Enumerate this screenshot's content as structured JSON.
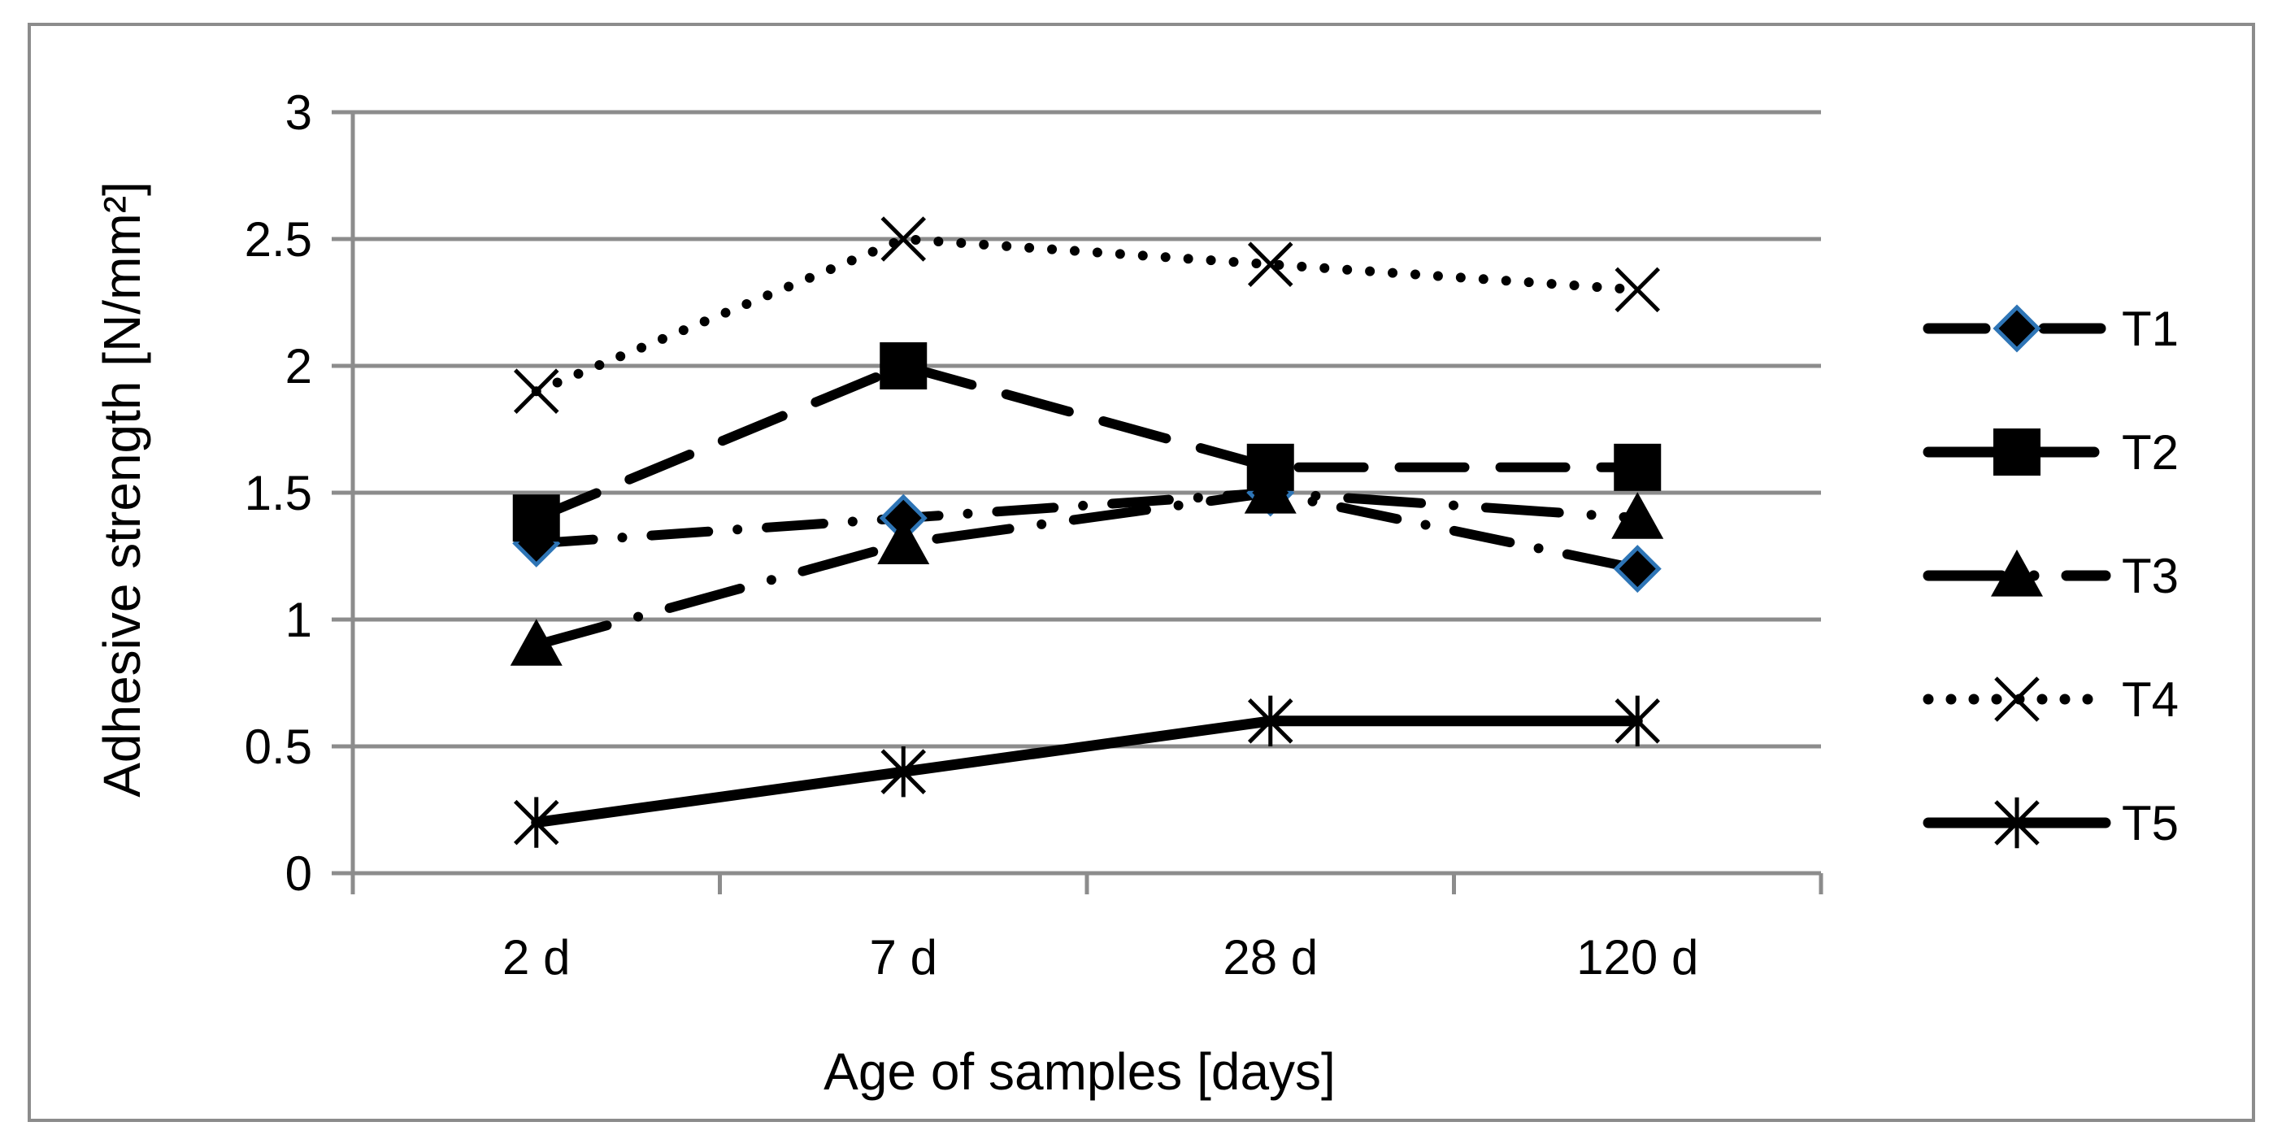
{
  "chart_data": {
    "type": "line",
    "title": "",
    "xlabel": "Age of samples [days]",
    "ylabel": "Adhesive strength [N/mm²]",
    "categories": [
      "2 d",
      "7 d",
      "28 d",
      "120 d"
    ],
    "ylim": [
      0,
      3
    ],
    "yticks": [
      0,
      0.5,
      1,
      1.5,
      2,
      2.5,
      3
    ],
    "ytick_labels": [
      "0",
      "0.5",
      "1",
      "1.5",
      "2",
      "2.5",
      "3"
    ],
    "grid": true,
    "legend_position": "right",
    "series": [
      {
        "name": "T1",
        "values": [
          1.3,
          1.4,
          1.5,
          1.2
        ],
        "dash": "dash-dot",
        "marker": "diamond"
      },
      {
        "name": "T2",
        "values": [
          1.4,
          2.0,
          1.6,
          1.6
        ],
        "dash": "long-dash",
        "marker": "square"
      },
      {
        "name": "T3",
        "values": [
          0.9,
          1.3,
          1.5,
          1.4
        ],
        "dash": "long-dash-dot",
        "marker": "triangle"
      },
      {
        "name": "T4",
        "values": [
          1.9,
          2.5,
          2.4,
          2.3
        ],
        "dash": "dotted",
        "marker": "x"
      },
      {
        "name": "T5",
        "values": [
          0.2,
          0.4,
          0.6,
          0.6
        ],
        "dash": "solid",
        "marker": "star"
      }
    ],
    "colors": {
      "line": "#000000",
      "grid": "#8c8c8c",
      "diamond_fill": "#000000",
      "diamond_stroke": "#2e75b6"
    }
  }
}
